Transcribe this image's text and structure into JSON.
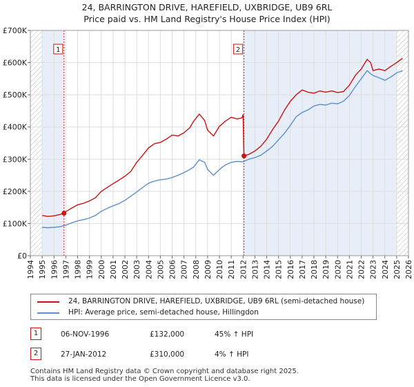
{
  "chart_data": {
    "type": "line",
    "title": "24, BARRINGTON DRIVE, HAREFIELD, UXBRIDGE, UB9 6RL",
    "subtitle": "Price paid vs. HM Land Registry's House Price Index (HPI)",
    "xlabel": "",
    "ylabel": "",
    "xlim": [
      1994.0,
      2026.0
    ],
    "ylim": [
      0,
      700000
    ],
    "x_ticks": [
      "1994",
      "1995",
      "1996",
      "1997",
      "1998",
      "1999",
      "2000",
      "2001",
      "2002",
      "2003",
      "2004",
      "2005",
      "2006",
      "2007",
      "2008",
      "2009",
      "2010",
      "2011",
      "2012",
      "2013",
      "2014",
      "2015",
      "2016",
      "2017",
      "2018",
      "2019",
      "2020",
      "2021",
      "2022",
      "2023",
      "2024",
      "2025",
      "2026"
    ],
    "y_ticks": [
      {
        "value": 0,
        "label": "£0"
      },
      {
        "value": 100000,
        "label": "£100K"
      },
      {
        "value": 200000,
        "label": "£200K"
      },
      {
        "value": 300000,
        "label": "£300K"
      },
      {
        "value": 400000,
        "label": "£400K"
      },
      {
        "value": 500000,
        "label": "£500K"
      },
      {
        "value": 600000,
        "label": "£600K"
      },
      {
        "value": 700000,
        "label": "£700K"
      }
    ],
    "grid": true,
    "shaded_ranges": [
      [
        1995.0,
        1996.85
      ],
      [
        2012.08,
        2025.0
      ]
    ],
    "hatched_ranges": [
      [
        1994.0,
        1995.0
      ],
      [
        2025.0,
        2026.0
      ]
    ],
    "series": [
      {
        "name": "24, BARRINGTON DRIVE, HAREFIELD, UXBRIDGE, UB9 6RL (semi-detached house)",
        "color": "#cc1111",
        "x": [
          1995.0,
          1995.5,
          1996.0,
          1996.5,
          1996.85,
          1997.0,
          1997.5,
          1998.0,
          1998.5,
          1999.0,
          1999.5,
          2000.0,
          2000.5,
          2001.0,
          2001.5,
          2002.0,
          2002.5,
          2003.0,
          2003.5,
          2004.0,
          2004.5,
          2005.0,
          2005.5,
          2006.0,
          2006.5,
          2007.0,
          2007.5,
          2007.8,
          2008.3,
          2008.75,
          2009.0,
          2009.5,
          2010.0,
          2010.5,
          2011.0,
          2011.5,
          2011.9,
          2012.0,
          2012.08,
          2012.5,
          2013.0,
          2013.5,
          2014.0,
          2014.5,
          2015.0,
          2015.5,
          2016.0,
          2016.5,
          2017.0,
          2017.5,
          2018.0,
          2018.5,
          2019.0,
          2019.5,
          2020.0,
          2020.5,
          2021.0,
          2021.5,
          2022.0,
          2022.5,
          2022.8,
          2023.0,
          2023.5,
          2024.0,
          2024.5,
          2025.0,
          2025.5
        ],
        "values": [
          125000,
          122000,
          124000,
          128000,
          132000,
          137000,
          148000,
          158000,
          163000,
          170000,
          180000,
          200000,
          212000,
          224000,
          235000,
          247000,
          262000,
          290000,
          312000,
          335000,
          348000,
          352000,
          362000,
          375000,
          372000,
          382000,
          398000,
          417000,
          440000,
          420000,
          390000,
          372000,
          402000,
          418000,
          430000,
          425000,
          428000,
          438000,
          310000,
          315000,
          325000,
          340000,
          362000,
          392000,
          418000,
          452000,
          480000,
          500000,
          515000,
          508000,
          505000,
          512000,
          508000,
          512000,
          507000,
          510000,
          530000,
          560000,
          580000,
          610000,
          600000,
          575000,
          580000,
          575000,
          588000,
          600000,
          613000
        ]
      },
      {
        "name": "HPI: Average price, semi-detached house, Hillingdon",
        "color": "#5a8fd0",
        "x": [
          1995.0,
          1995.5,
          1996.0,
          1996.5,
          1997.0,
          1997.5,
          1998.0,
          1998.5,
          1999.0,
          1999.5,
          2000.0,
          2000.5,
          2001.0,
          2001.5,
          2002.0,
          2002.5,
          2003.0,
          2003.5,
          2004.0,
          2004.5,
          2005.0,
          2005.5,
          2006.0,
          2006.5,
          2007.0,
          2007.5,
          2007.8,
          2008.3,
          2008.75,
          2009.0,
          2009.5,
          2010.0,
          2010.5,
          2011.0,
          2011.5,
          2012.0,
          2012.5,
          2013.0,
          2013.5,
          2014.0,
          2014.5,
          2015.0,
          2015.5,
          2016.0,
          2016.5,
          2017.0,
          2017.5,
          2018.0,
          2018.5,
          2019.0,
          2019.5,
          2020.0,
          2020.5,
          2021.0,
          2021.5,
          2022.0,
          2022.5,
          2022.8,
          2023.0,
          2023.5,
          2024.0,
          2024.5,
          2025.0,
          2025.5
        ],
        "values": [
          88000,
          87000,
          88000,
          90000,
          95000,
          102000,
          108000,
          112000,
          117000,
          125000,
          138000,
          147000,
          155000,
          162000,
          172000,
          185000,
          198000,
          212000,
          225000,
          232000,
          236000,
          238000,
          243000,
          250000,
          258000,
          268000,
          275000,
          298000,
          290000,
          268000,
          250000,
          268000,
          282000,
          290000,
          293000,
          292000,
          300000,
          305000,
          312000,
          325000,
          340000,
          360000,
          380000,
          405000,
          432000,
          445000,
          453000,
          465000,
          470000,
          468000,
          474000,
          472000,
          480000,
          498000,
          525000,
          550000,
          575000,
          565000,
          560000,
          553000,
          545000,
          555000,
          568000,
          575000
        ]
      }
    ],
    "annotations": [
      {
        "label": "1",
        "x": 1996.85,
        "y": 132000
      },
      {
        "label": "2",
        "x": 2012.08,
        "y": 310000
      }
    ],
    "legend_position": "bottom"
  },
  "legend": {
    "items": [
      {
        "label": "24, BARRINGTON DRIVE, HAREFIELD, UXBRIDGE, UB9 6RL (semi-detached house)",
        "color": "#cc1111"
      },
      {
        "label": "HPI: Average price, semi-detached house, Hillingdon",
        "color": "#5a8fd0"
      }
    ]
  },
  "transactions": [
    {
      "marker": "1",
      "date": "06-NOV-1996",
      "price": "£132,000",
      "hpi": "45% ↑ HPI"
    },
    {
      "marker": "2",
      "date": "27-JAN-2012",
      "price": "£310,000",
      "hpi": "4% ↑ HPI"
    }
  ],
  "footer": {
    "line1": "Contains HM Land Registry data © Crown copyright and database right 2025.",
    "line2": "This data is licensed under the Open Government Licence v3.0."
  }
}
